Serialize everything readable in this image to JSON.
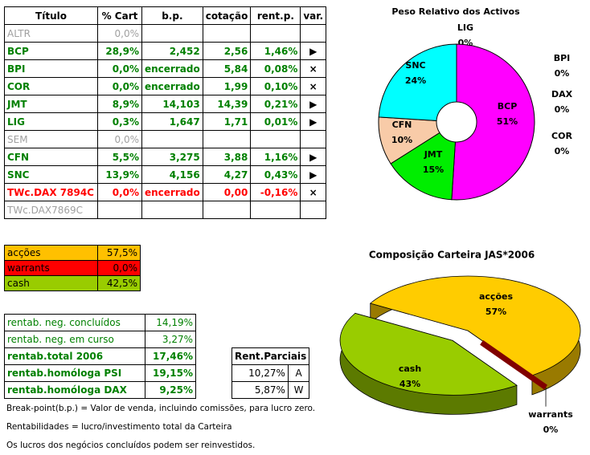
{
  "table": {
    "header": [
      "Título",
      "% Cart",
      "b.p.",
      "cotação",
      "rent.p.",
      "var."
    ],
    "rows": [
      {
        "color": "#a0a0a0",
        "cells": [
          "ALTR",
          "0,0%"
        ]
      },
      {
        "color": "#008000",
        "cells": [
          "BCP",
          "28,9%",
          "2,452",
          "2,56",
          "1,46%",
          "▶"
        ]
      },
      {
        "color": "#008000",
        "cells": [
          "BPI",
          "0,0%",
          "encerrado",
          "5,84",
          "0,08%",
          "×"
        ]
      },
      {
        "color": "#008000",
        "cells": [
          "COR",
          "0,0%",
          "encerrado",
          "1,99",
          "0,10%",
          "×"
        ]
      },
      {
        "color": "#008000",
        "cells": [
          "JMT",
          "8,9%",
          "14,103",
          "14,39",
          "0,21%",
          "▶"
        ]
      },
      {
        "color": "#008000",
        "cells": [
          "LIG",
          "0,3%",
          "1,647",
          "1,71",
          "0,01%",
          "▶"
        ]
      },
      {
        "color": "#a0a0a0",
        "cells": [
          "SEM",
          "0,0%"
        ]
      },
      {
        "color": "#008000",
        "cells": [
          "CFN",
          "5,5%",
          "3,275",
          "3,88",
          "1,16%",
          "▶"
        ]
      },
      {
        "color": "#008000",
        "cells": [
          "SNC",
          "13,9%",
          "4,156",
          "4,27",
          "0,43%",
          "▶"
        ]
      },
      {
        "color": "#ff0000",
        "cells": [
          "TWc.DAX 7894C",
          "0,0%",
          "encerrado",
          "0,00",
          "-0,16%",
          "×"
        ]
      },
      {
        "color": "#a0a0a0",
        "cells": [
          "TWc.DAX7869C"
        ]
      }
    ]
  },
  "allocation": {
    "rows": [
      {
        "label": "acções",
        "value": "57,5%",
        "color": "#ffc000"
      },
      {
        "label": "warrants",
        "value": "0,0%",
        "color": "#ff0000"
      },
      {
        "label": "cash",
        "value": "42,5%",
        "color": "#99cc00"
      }
    ]
  },
  "returns": {
    "rows": [
      {
        "label": "rentab. neg. concluídos",
        "value": "14,19%",
        "bold": false
      },
      {
        "label": "rentab. neg. em curso",
        "value": "3,27%",
        "bold": false
      },
      {
        "label": "rentab.total 2006",
        "value": "17,46%",
        "bold": true
      },
      {
        "label": "rentab.homóloga PSI",
        "value": "19,15%",
        "bold": true
      },
      {
        "label": "rentab.homóloga DAX",
        "value": "9,25%",
        "bold": true
      }
    ]
  },
  "partials": {
    "header": "Rent.Parciais",
    "rows": [
      [
        "10,27%",
        "A"
      ],
      [
        "5,87%",
        "W"
      ]
    ]
  },
  "notes": [
    "Break-point(b.p.) = Valor de venda, incluindo comissões, para lucro zero.",
    "Rentabilidades = lucro/investimento total da Carteira",
    "Os lucros dos negócios concluídos podem ser reinvestidos."
  ],
  "chart_data": [
    {
      "type": "donut",
      "title": "Peso Relativo dos Activos",
      "categories": [
        "LIG",
        "BCP",
        "JMT",
        "CFN",
        "SNC",
        "BPI",
        "DAX",
        "COR"
      ],
      "values": [
        0,
        51,
        15,
        10,
        24,
        0,
        0,
        0
      ],
      "value_labels": [
        "0%",
        "51%",
        "15%",
        "10%",
        "24%",
        "0%",
        "0%",
        "0%"
      ],
      "colors": [
        "#ffff00",
        "#ff00ff",
        "#00ee00",
        "#f8cba8",
        "#00ffff",
        "#0000ff",
        "#ff8000",
        "#808080"
      ]
    },
    {
      "type": "pie3d",
      "title": "Composição Carteira JAS*2006",
      "categories": [
        "acções",
        "warrants",
        "cash"
      ],
      "values": [
        57,
        0,
        43
      ],
      "value_labels": [
        "57%",
        "0%",
        "43%"
      ],
      "colors": [
        "#ffcc00",
        "#800000",
        "#99cc00"
      ]
    }
  ]
}
